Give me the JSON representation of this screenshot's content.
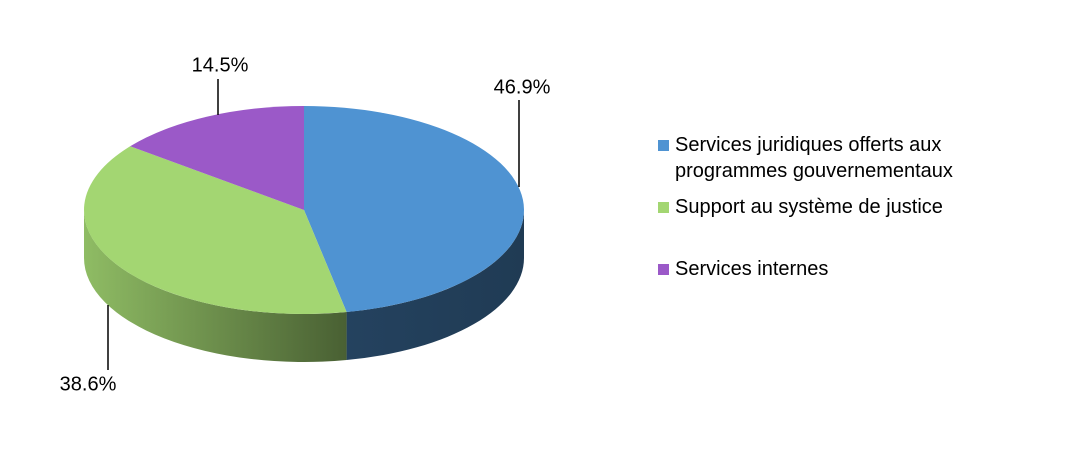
{
  "chart_data": {
    "type": "pie",
    "series": [
      {
        "name": "Services juridiques offerts aux programmes gouvernementaux",
        "color": "#4f93d2",
        "values": [
          46.9
        ],
        "value_labels": [
          "46.9%"
        ]
      },
      {
        "name": "Support au système de justice",
        "color": "#a3d672",
        "values": [
          38.6
        ],
        "value_labels": [
          "38.6%"
        ]
      },
      {
        "name": "Services internes",
        "color": "#9b59c8",
        "values": [
          14.5
        ],
        "value_labels": [
          "14.5%"
        ]
      }
    ]
  }
}
